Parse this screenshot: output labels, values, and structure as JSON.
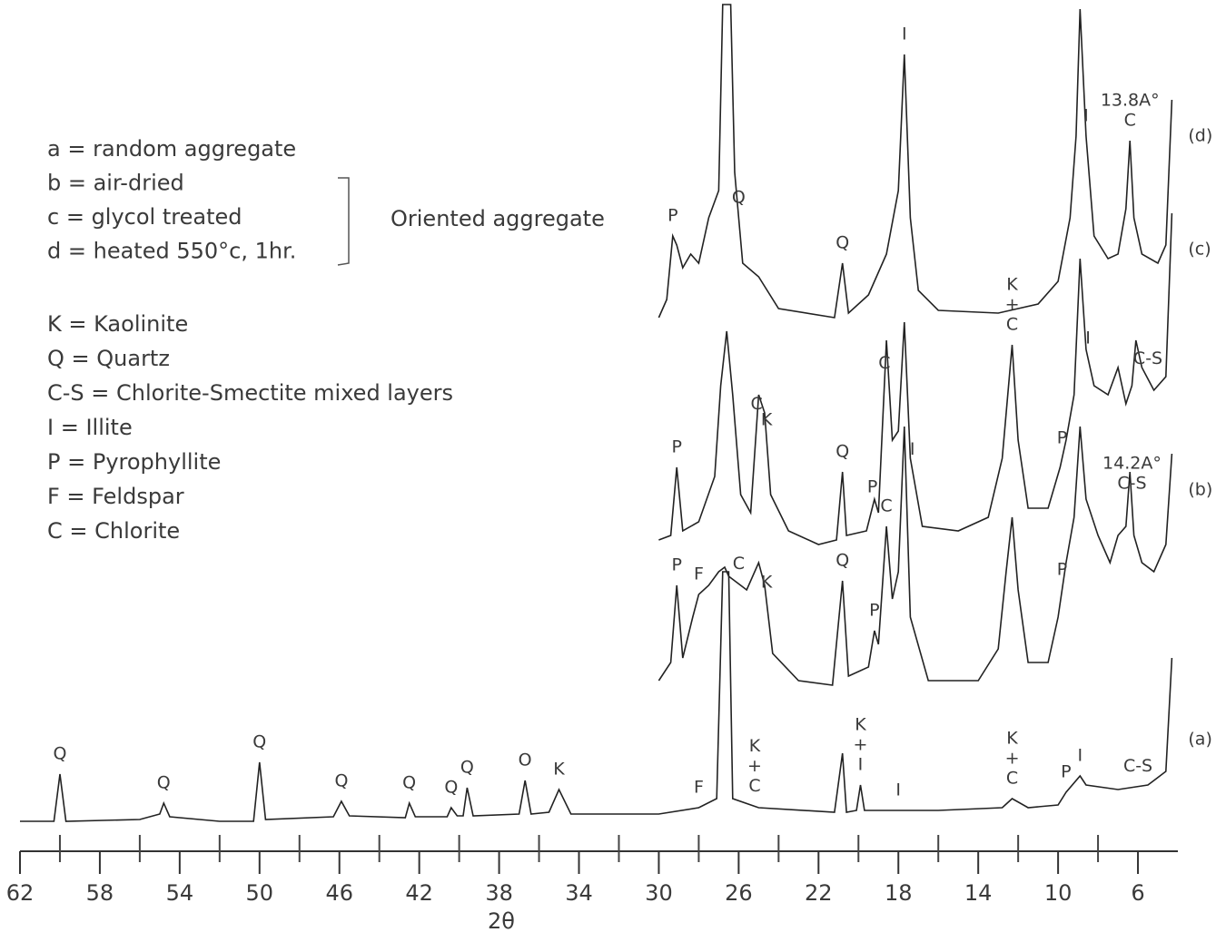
{
  "chart_data": {
    "type": "line",
    "xlabel": "2θ",
    "xlim": [
      62,
      4
    ],
    "xticks": [
      62,
      58,
      54,
      50,
      46,
      42,
      38,
      34,
      30,
      26,
      22,
      18,
      14,
      10,
      6
    ],
    "xminor_ticks": [
      60,
      56,
      52,
      48,
      44,
      40,
      36,
      32,
      28,
      24,
      20,
      16,
      12,
      8
    ],
    "legend": [
      "a = random aggregate",
      "b = air-dried",
      "c = glycol treated",
      "d = heated 550°c, 1hr."
    ],
    "bracket_label": "Oriented aggregate",
    "key": [
      "K = Kaolinite",
      "Q = Quartz",
      "C-S = Chlorite-Smectite mixed layers",
      "I = Illite",
      "P = Pyrophyllite",
      "F = Feldspar",
      "C = Chlorite"
    ],
    "series": [
      {
        "name": "(a)",
        "color": "#222",
        "x": [
          62,
          60.3,
          60.0,
          59.7,
          56,
          55,
          54.8,
          54.5,
          52,
          50.3,
          50.0,
          49.7,
          46.3,
          45.9,
          45.5,
          42.7,
          42.5,
          42.2,
          40.6,
          40.4,
          40.1,
          39.8,
          39.6,
          39.3,
          37,
          36.7,
          36.4,
          35.5,
          35.0,
          34.4,
          30,
          28,
          27.1,
          26.8,
          26.5,
          26.3,
          25,
          21.2,
          20.8,
          20.6,
          20.1,
          19.9,
          19.7,
          16,
          12.8,
          12.3,
          11.5,
          10,
          9.6,
          8.9,
          8.6,
          7,
          5.5,
          4.6,
          4.3
        ],
        "values": [
          0,
          0,
          52,
          0,
          2,
          8,
          20,
          5,
          0,
          0,
          65,
          2,
          5,
          22,
          6,
          4,
          20,
          5,
          5,
          15,
          6,
          6,
          37,
          6,
          8,
          45,
          8,
          10,
          35,
          8,
          8,
          15,
          25,
          275,
          275,
          25,
          15,
          10,
          75,
          10,
          12,
          40,
          12,
          12,
          15,
          25,
          15,
          18,
          32,
          50,
          40,
          35,
          40,
          55,
          180
        ],
        "labels": [
          {
            "lines": [
              "Q"
            ],
            "x": 60.0
          },
          {
            "lines": [
              "Q"
            ],
            "x": 54.8
          },
          {
            "lines": [
              "Q"
            ],
            "x": 50.0
          },
          {
            "lines": [
              "Q"
            ],
            "x": 45.9
          },
          {
            "lines": [
              "Q"
            ],
            "x": 42.5
          },
          {
            "lines": [
              "Q"
            ],
            "x": 40.4
          },
          {
            "lines": [
              "Q"
            ],
            "x": 39.6
          },
          {
            "lines": [
              "O"
            ],
            "x": 36.7
          },
          {
            "lines": [
              "K"
            ],
            "x": 35.0
          },
          {
            "lines": [
              "F"
            ],
            "x": 28.0
          },
          {
            "lines": [
              "K",
              "+",
              "C"
            ],
            "x": 25.2
          },
          {
            "lines": [
              "K",
              "+",
              "I"
            ],
            "x": 19.9
          },
          {
            "lines": [
              "I"
            ],
            "x": 18.0
          },
          {
            "lines": [
              "K",
              "+",
              "C"
            ],
            "x": 12.3
          },
          {
            "lines": [
              "P"
            ],
            "x": 9.6
          },
          {
            "lines": [
              "I"
            ],
            "x": 8.9
          },
          {
            "lines": [
              "C-S"
            ],
            "x": 6.0
          }
        ]
      },
      {
        "name": "(b)",
        "color": "#222",
        "x": [
          30.0,
          29.4,
          29.1,
          28.8,
          28.3,
          28.0,
          27.5,
          27.0,
          26.7,
          26.5,
          26.2,
          25.6,
          25.0,
          24.7,
          24.3,
          23,
          21.3,
          20.8,
          20.5,
          19.5,
          19.2,
          19.0,
          18.6,
          18.3,
          18.0,
          17.7,
          17.4,
          16.5,
          14,
          13,
          12.6,
          12.3,
          12.0,
          11.5,
          10.5,
          10,
          9.6,
          9.2,
          8.9,
          8.6,
          8.0,
          7.4,
          7.0,
          6.6,
          6.4,
          6.2,
          5.8,
          5.2,
          4.6,
          4.3
        ],
        "values": [
          20,
          40,
          125,
          45,
          90,
          115,
          125,
          140,
          145,
          135,
          130,
          120,
          150,
          125,
          50,
          20,
          15,
          130,
          25,
          35,
          75,
          60,
          190,
          110,
          140,
          300,
          90,
          20,
          20,
          55,
          140,
          200,
          120,
          40,
          40,
          90,
          150,
          200,
          300,
          220,
          180,
          150,
          180,
          190,
          250,
          180,
          150,
          140,
          170,
          270
        ],
        "labels": [
          {
            "lines": [
              "P"
            ],
            "x": 29.1
          },
          {
            "lines": [
              "F"
            ],
            "x": 28.0
          },
          {
            "lines": [
              "C"
            ],
            "x": 26.0
          },
          {
            "lines": [
              "K"
            ],
            "x": 24.6
          },
          {
            "lines": [
              "Q"
            ],
            "x": 20.8
          },
          {
            "lines": [
              "P"
            ],
            "x": 19.2
          },
          {
            "lines": [
              "C"
            ],
            "x": 18.6
          },
          {
            "lines": [
              "P"
            ],
            "x": 9.8
          },
          {
            "lines": [
              "14.2A°",
              "C-S"
            ],
            "x": 6.3
          }
        ]
      },
      {
        "name": "(c)",
        "color": "#222",
        "x": [
          30.0,
          29.4,
          29.1,
          28.8,
          28,
          27.2,
          26.9,
          26.6,
          26.3,
          25.9,
          25.4,
          25.0,
          24.7,
          24.4,
          23.5,
          22,
          21.1,
          20.8,
          20.6,
          19.6,
          19.2,
          19.0,
          18.6,
          18.3,
          18.0,
          17.7,
          17.4,
          16.8,
          15,
          13.5,
          12.8,
          12.3,
          12.0,
          11.5,
          10.5,
          9.9,
          9.6,
          9.2,
          8.9,
          8.6,
          8.2,
          7.5,
          7.0,
          6.6,
          6.3,
          6.1,
          5.8,
          5.2,
          4.6,
          4.3
        ],
        "values": [
          10,
          15,
          90,
          20,
          30,
          80,
          180,
          240,
          170,
          60,
          40,
          170,
          150,
          60,
          20,
          5,
          10,
          85,
          15,
          20,
          55,
          40,
          230,
          120,
          130,
          250,
          100,
          25,
          20,
          35,
          100,
          225,
          120,
          45,
          45,
          90,
          120,
          170,
          320,
          220,
          180,
          170,
          200,
          160,
          180,
          230,
          200,
          175,
          190,
          370
        ],
        "labels": [
          {
            "lines": [
              "P"
            ],
            "x": 29.1
          },
          {
            "lines": [
              "C"
            ],
            "x": 25.1
          },
          {
            "lines": [
              "K"
            ],
            "x": 24.6
          },
          {
            "lines": [
              "Q"
            ],
            "x": 20.8
          },
          {
            "lines": [
              "P"
            ],
            "x": 19.3
          },
          {
            "lines": [
              "C"
            ],
            "x": 18.7
          },
          {
            "lines": [
              "I"
            ],
            "x": 17.3
          },
          {
            "lines": [
              "K",
              "+",
              "C"
            ],
            "x": 12.3
          },
          {
            "lines": [
              "P"
            ],
            "x": 9.8
          },
          {
            "lines": [
              "I"
            ],
            "x": 8.5
          },
          {
            "lines": [
              "C-S"
            ],
            "x": 5.5
          }
        ]
      },
      {
        "name": "(d)",
        "color": "#222",
        "x": [
          30.0,
          29.6,
          29.3,
          29.1,
          28.8,
          28.4,
          28.0,
          27.5,
          27.0,
          26.8,
          26.4,
          26.2,
          25.8,
          25,
          24,
          21.2,
          20.8,
          20.5,
          19.5,
          18.6,
          18.0,
          17.7,
          17.4,
          17,
          16,
          13,
          11,
          10,
          9.4,
          9.1,
          8.9,
          8.6,
          8.2,
          7.5,
          7,
          6.6,
          6.4,
          6.2,
          5.8,
          5,
          4.6,
          4.3
        ],
        "values": [
          0,
          20,
          90,
          80,
          55,
          70,
          60,
          110,
          140,
          345,
          345,
          160,
          60,
          45,
          10,
          0,
          60,
          5,
          25,
          70,
          140,
          290,
          110,
          30,
          8,
          5,
          15,
          40,
          110,
          200,
          340,
          200,
          90,
          65,
          70,
          120,
          195,
          110,
          70,
          60,
          80,
          240
        ],
        "labels": [
          {
            "lines": [
              "P"
            ],
            "x": 29.3
          },
          {
            "lines": [
              "Q"
            ],
            "x": 26.0
          },
          {
            "lines": [
              "Q"
            ],
            "x": 20.8
          },
          {
            "lines": [
              "I"
            ],
            "x": 17.7
          },
          {
            "lines": [
              "I"
            ],
            "x": 8.6
          },
          {
            "lines": [
              "13.8A°",
              "C"
            ],
            "x": 6.4
          }
        ]
      }
    ]
  }
}
